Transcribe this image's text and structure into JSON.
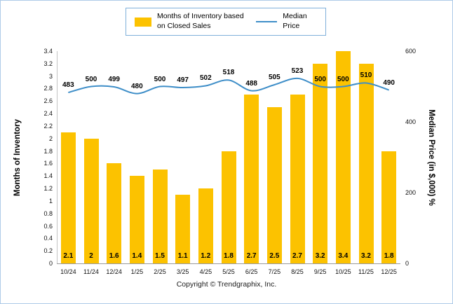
{
  "frame": {
    "border_color": "#aecbe8"
  },
  "legend": {
    "bar_label": "Months of Inventory based on Closed Sales",
    "line_label": "Median Price"
  },
  "footer": {
    "copyright": "Copyright © Trendgraphix, Inc."
  },
  "colors": {
    "bar": "#FCC200",
    "line": "#3E8EC8",
    "legend_border": "#7fb0da"
  },
  "chart_data": {
    "type": "bar",
    "subtype": "combo-bar-line",
    "categories": [
      "10/24",
      "11/24",
      "12/24",
      "1/25",
      "2/25",
      "3/25",
      "4/25",
      "5/25",
      "6/25",
      "7/25",
      "8/25",
      "9/25",
      "10/25",
      "11/25",
      "12/25"
    ],
    "series": [
      {
        "name": "Months of Inventory based on Closed Sales",
        "type": "bar",
        "axis": "left",
        "color": "#FCC200",
        "values": [
          2.1,
          2,
          1.6,
          1.4,
          1.5,
          1.1,
          1.2,
          1.8,
          2.7,
          2.5,
          2.7,
          3.2,
          3.4,
          3.2,
          1.8
        ]
      },
      {
        "name": "Median Price",
        "type": "line",
        "axis": "right",
        "color": "#3E8EC8",
        "values": [
          483,
          500,
          499,
          480,
          500,
          497,
          502,
          518,
          488,
          505,
          523,
          500,
          500,
          510,
          490
        ]
      }
    ],
    "left_axis": {
      "title": "Months of Inventory",
      "min": 0,
      "max": 3.4,
      "ticks": [
        0,
        0.2,
        0.4,
        0.6,
        0.8,
        1,
        1.2,
        1.4,
        1.6,
        1.8,
        2,
        2.2,
        2.4,
        2.6,
        2.8,
        3,
        3.2,
        3.4
      ]
    },
    "right_axis": {
      "title": "Median Price (in $,000) %",
      "min": 0,
      "max": 600,
      "ticks": [
        0,
        200,
        400,
        600
      ]
    },
    "grid": false,
    "legend_position": "top",
    "data_labels": true
  }
}
